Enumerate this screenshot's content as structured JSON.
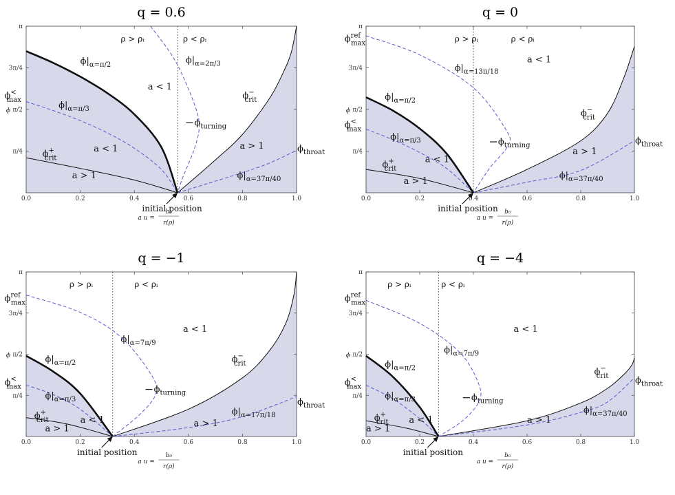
{
  "chart_data": [
    {
      "type": "line",
      "title": "q = 0.6",
      "xlim": [
        0,
        1
      ],
      "ylim": [
        0,
        3.1416
      ],
      "x_ticks": [
        "0.0",
        "0.2",
        "0.4",
        "0.6",
        "0.8",
        "1.0"
      ],
      "y_ticks": [
        "π/4",
        "π/2",
        "3π/4",
        "π"
      ],
      "ylabel": "ϕ",
      "xlabel": "a u = b₀ / r(ρ)",
      "rho_i": 0.56,
      "region_labels": [
        "ρ > ρᵢ",
        "ρ < ρᵢ"
      ],
      "initial_position_label": "initial position",
      "ineq": [
        "a < 1",
        "a < 1",
        "a > 1",
        "a > 1"
      ],
      "curve_labels": {
        "crit_plus": "ϕ+crit",
        "crit_minus": "ϕ−crit",
        "max_less": "ϕ<max",
        "alpha_half": "ϕ|α=π/2",
        "alpha_third": "ϕ|α=π/3",
        "alpha_b": "ϕ|α=2π/3",
        "alpha_c": "ϕ|α=37π/40",
        "turning": "ϕturning",
        "throat": "ϕthroat"
      },
      "series": [
        {
          "name": "ϕ+crit",
          "x": [
            0,
            0.2,
            0.4,
            0.56
          ],
          "y": [
            0.66,
            0.46,
            0.24,
            0
          ]
        },
        {
          "name": "ϕ|α=π/2",
          "x": [
            0,
            0.1,
            0.2,
            0.3,
            0.4,
            0.5,
            0.56
          ],
          "y": [
            2.67,
            2.45,
            2.19,
            1.88,
            1.48,
            0.86,
            0
          ]
        },
        {
          "name": "ϕ|α=π/3",
          "x": [
            0,
            0.1,
            0.2,
            0.3,
            0.4,
            0.5,
            0.56
          ],
          "y": [
            1.72,
            1.55,
            1.36,
            1.13,
            0.84,
            0.44,
            0
          ]
        },
        {
          "name": "ϕ|α=2π/3",
          "x": [
            0.46,
            0.55,
            0.62,
            0.64,
            0.62,
            0.58,
            0.56
          ],
          "y": [
            3.14,
            2.5,
            1.7,
            1.25,
            0.8,
            0.3,
            0
          ]
        },
        {
          "name": "ϕ−crit",
          "x": [
            0.56,
            0.7,
            0.8,
            0.9,
            0.95,
            0.98,
            1.0
          ],
          "y": [
            0,
            0.62,
            1.1,
            1.78,
            2.26,
            2.64,
            3.14
          ]
        },
        {
          "name": "ϕ|α=37π/40",
          "x": [
            0.56,
            0.7,
            0.8,
            0.9,
            1.0
          ],
          "y": [
            0,
            0.22,
            0.38,
            0.56,
            0.8
          ]
        }
      ]
    },
    {
      "type": "line",
      "title": "q = 0",
      "xlim": [
        0,
        1
      ],
      "ylim": [
        0,
        3.1416
      ],
      "x_ticks": [
        "0.0",
        "0.2",
        "0.4",
        "0.6",
        "0.8",
        "1.0"
      ],
      "y_ticks": [
        "π/4",
        "π/2",
        "3π/4",
        "π"
      ],
      "ylabel": "ϕ",
      "xlabel": "a u = b₀ / r(ρ)",
      "rho_i": 0.4,
      "region_labels": [
        "ρ > ρᵢ",
        "ρ < ρᵢ"
      ],
      "initial_position_label": "initial position",
      "ineq": [
        "a < 1",
        "a < 1",
        "a > 1",
        "a > 1"
      ],
      "curve_labels": {
        "crit_plus": "ϕ+crit",
        "crit_minus": "ϕ−crit",
        "max_less": "ϕ<max",
        "max_ref": "ϕrefmax",
        "alpha_half": "ϕ|α=π/2",
        "alpha_third": "ϕ|α=π/3",
        "alpha_b": "ϕ|α=13π/18",
        "alpha_c": "ϕ|α=37π/40",
        "turning": "ϕturning",
        "throat": "ϕthroat"
      },
      "series": [
        {
          "name": "ϕ+crit",
          "x": [
            0,
            0.2,
            0.4
          ],
          "y": [
            0.44,
            0.27,
            0
          ]
        },
        {
          "name": "ϕ|α=π/2",
          "x": [
            0,
            0.1,
            0.2,
            0.3,
            0.4
          ],
          "y": [
            1.8,
            1.55,
            1.21,
            0.74,
            0
          ]
        },
        {
          "name": "ϕ|α=π/3",
          "x": [
            0,
            0.1,
            0.2,
            0.3,
            0.4
          ],
          "y": [
            1.2,
            1.0,
            0.76,
            0.46,
            0
          ]
        },
        {
          "name": "ϕ|α=13π/18",
          "x": [
            0,
            0.2,
            0.4,
            0.52,
            0.53,
            0.46,
            0.4
          ],
          "y": [
            2.96,
            2.6,
            1.98,
            1.2,
            0.9,
            0.46,
            0
          ]
        },
        {
          "name": "ϕ−crit",
          "x": [
            0.4,
            0.6,
            0.8,
            0.9,
            0.96,
            1.0
          ],
          "y": [
            0,
            0.44,
            0.98,
            1.5,
            2.16,
            2.76
          ]
        },
        {
          "name": "ϕ|α=37π/40",
          "x": [
            0.4,
            0.6,
            0.8,
            1.0
          ],
          "y": [
            0,
            0.2,
            0.42,
            0.98
          ]
        }
      ]
    },
    {
      "type": "line",
      "title": "q = −1",
      "xlim": [
        0,
        1
      ],
      "ylim": [
        0,
        3.1416
      ],
      "x_ticks": [
        "0.0",
        "0.2",
        "0.4",
        "0.6",
        "0.8",
        "1.0"
      ],
      "y_ticks": [
        "π/4",
        "π/2",
        "3π/4",
        "π"
      ],
      "ylabel": "ϕ",
      "xlabel": "a u = b₀ / r(ρ)",
      "rho_i": 0.32,
      "region_labels": [
        "ρ > ρᵢ",
        "ρ < ρᵢ"
      ],
      "initial_position_label": "initial position",
      "ineq": [
        "a < 1",
        "a < 1",
        "a > 1",
        "a > 1"
      ],
      "curve_labels": {
        "crit_plus": "ϕ+crit",
        "crit_minus": "ϕ−crit",
        "max_less": "ϕ<max",
        "max_ref": "ϕrefmax",
        "alpha_half": "ϕ|α=π/2",
        "alpha_third": "ϕ|α=π/3",
        "alpha_b": "ϕ|α=7π/9",
        "alpha_c": "ϕ|α=17π/18",
        "turning": "ϕturning",
        "throat": "ϕthroat"
      },
      "series": [
        {
          "name": "ϕ+crit",
          "x": [
            0,
            0.15,
            0.32
          ],
          "y": [
            0.36,
            0.24,
            0
          ]
        },
        {
          "name": "ϕ|α=π/2",
          "x": [
            0,
            0.1,
            0.2,
            0.32
          ],
          "y": [
            1.54,
            1.24,
            0.82,
            0
          ]
        },
        {
          "name": "ϕ|α=π/3",
          "x": [
            0,
            0.1,
            0.2,
            0.32
          ],
          "y": [
            0.98,
            0.8,
            0.52,
            0
          ]
        },
        {
          "name": "ϕ|α=7π/9",
          "x": [
            0,
            0.2,
            0.35,
            0.46,
            0.48,
            0.42,
            0.32
          ],
          "y": [
            2.7,
            2.37,
            1.9,
            1.2,
            0.82,
            0.42,
            0
          ]
        },
        {
          "name": "ϕ−crit",
          "x": [
            0.32,
            0.6,
            0.8,
            0.9,
            0.96,
            0.99,
            1.0
          ],
          "y": [
            0,
            0.52,
            1.12,
            1.64,
            2.16,
            2.7,
            3.14
          ]
        },
        {
          "name": "ϕ|α=17π/18",
          "x": [
            0.32,
            0.6,
            0.8,
            1.0
          ],
          "y": [
            0,
            0.17,
            0.38,
            0.76
          ]
        }
      ]
    },
    {
      "type": "line",
      "title": "q = −4",
      "xlim": [
        0,
        1
      ],
      "ylim": [
        0,
        3.1416
      ],
      "x_ticks": [
        "0.0",
        "0.2",
        "0.4",
        "0.6",
        "0.8",
        "1.0"
      ],
      "y_ticks": [
        "π/4",
        "π/2",
        "3π/4",
        "π"
      ],
      "ylabel": "ϕ",
      "xlabel": "a u = b₀ / r(ρ)",
      "rho_i": 0.27,
      "region_labels": [
        "ρ > ρᵢ",
        "ρ < ρᵢ"
      ],
      "initial_position_label": "initial position",
      "ineq": [
        "a < 1",
        "a < 1",
        "a > 1",
        "a > 1"
      ],
      "curve_labels": {
        "crit_plus": "ϕ+crit",
        "crit_minus": "ϕ−crit",
        "max_less": "ϕ<max",
        "max_ref": "ϕrefmax",
        "alpha_half": "ϕ|α=π/2",
        "alpha_third": "ϕ|α=π/3",
        "alpha_b": "ϕ|α=7π/9",
        "alpha_c": "ϕ|α=37π/40",
        "turning": "ϕturning",
        "throat": "ϕthroat"
      },
      "series": [
        {
          "name": "ϕ+crit",
          "x": [
            0,
            0.15,
            0.27
          ],
          "y": [
            0.3,
            0.16,
            0
          ]
        },
        {
          "name": "ϕ|α=π/2",
          "x": [
            0,
            0.1,
            0.2,
            0.27
          ],
          "y": [
            1.54,
            1.14,
            0.56,
            0
          ]
        },
        {
          "name": "ϕ|α=π/3",
          "x": [
            0,
            0.1,
            0.2,
            0.27
          ],
          "y": [
            0.98,
            0.72,
            0.34,
            0
          ]
        },
        {
          "name": "ϕ|α=7π/9",
          "x": [
            0,
            0.2,
            0.35,
            0.42,
            0.42,
            0.36,
            0.27
          ],
          "y": [
            2.6,
            2.16,
            1.6,
            1.0,
            0.66,
            0.3,
            0
          ]
        },
        {
          "name": "ϕ−crit",
          "x": [
            0.27,
            0.6,
            0.8,
            0.9,
            0.96,
            0.99,
            1.0
          ],
          "y": [
            0,
            0.3,
            0.64,
            0.92,
            1.18,
            1.36,
            1.5
          ]
        },
        {
          "name": "ϕ|α=37π/40",
          "x": [
            0.27,
            0.6,
            0.8,
            0.9,
            1.0
          ],
          "y": [
            0,
            0.22,
            0.46,
            0.66,
            1.12
          ]
        }
      ]
    }
  ],
  "colors": {
    "shade": "#d7d8ea",
    "dashed": "#5a5acb",
    "solid": "#111111"
  }
}
